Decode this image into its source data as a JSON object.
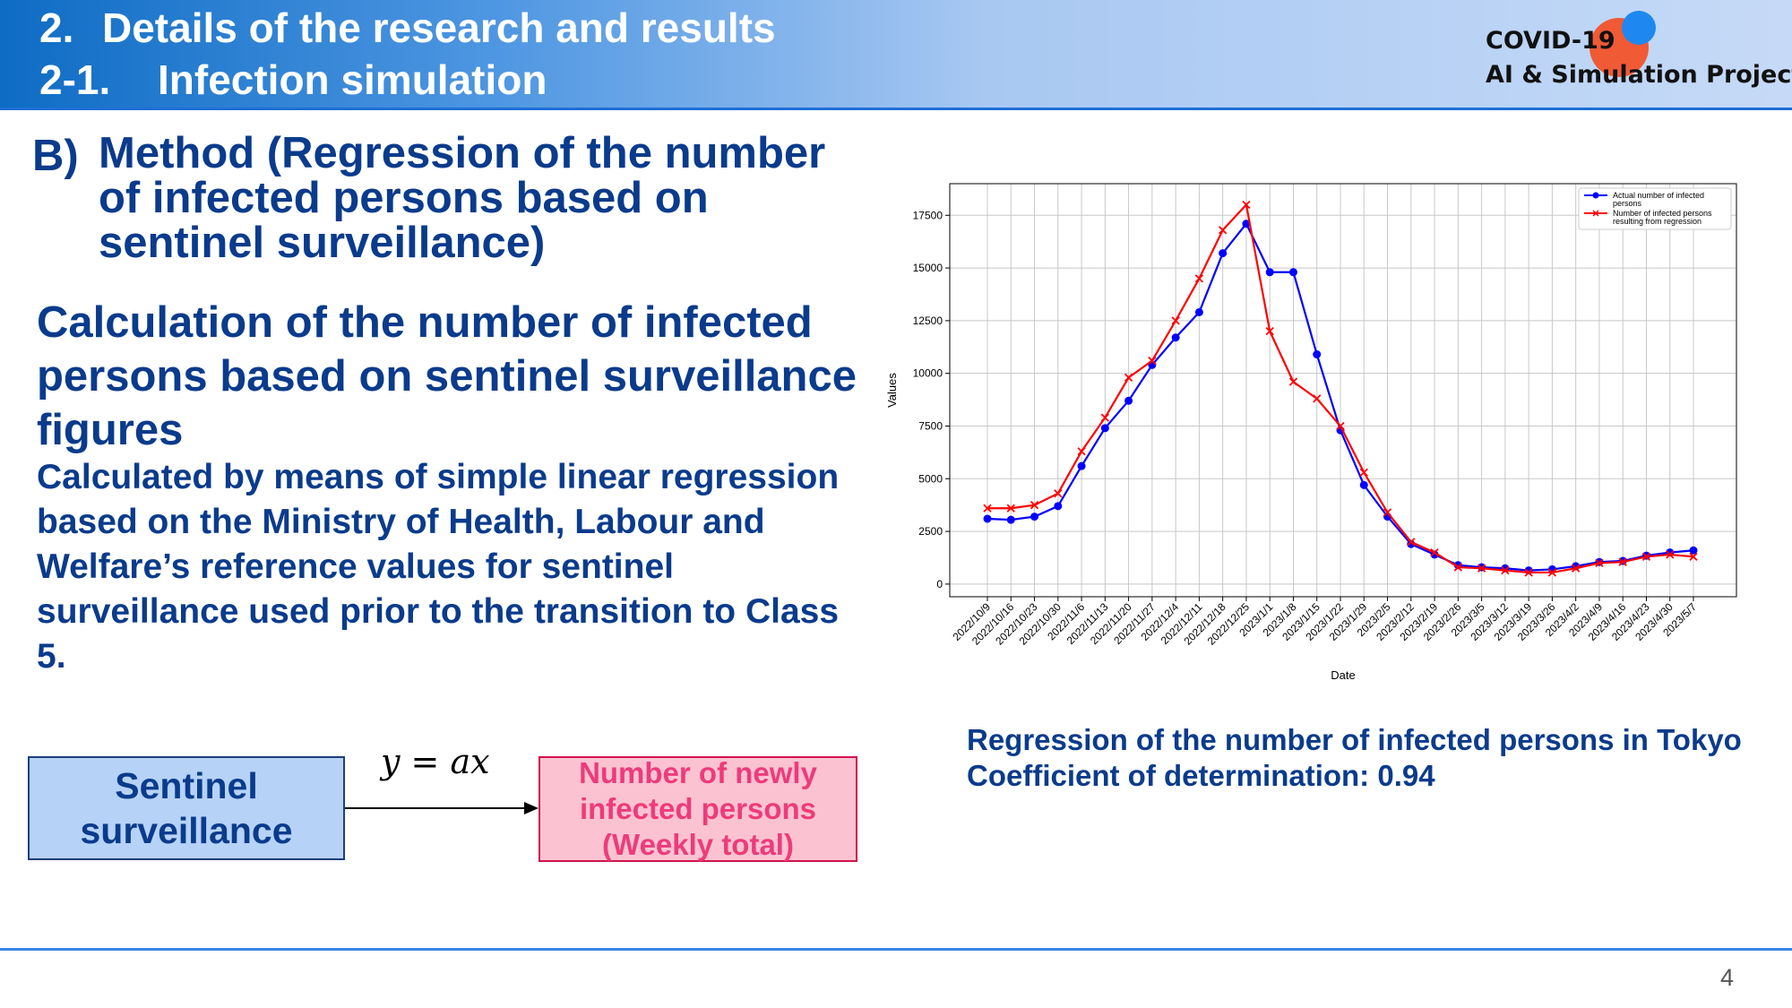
{
  "header": {
    "line1_num": "2.",
    "line1_text": "Details of the research and results",
    "line2_num": "2-1.",
    "line2_text": "Infection simulation",
    "logo_line1": "COVID-19",
    "logo_line2": "AI & Simulation Project",
    "logo_colors": {
      "orange": "#f05a35",
      "blue": "#1e88f0"
    }
  },
  "method": {
    "label": "B)",
    "text": "Method (Regression of the number of infected persons based on sentinel surveillance)"
  },
  "calc": {
    "heading": "Calculation of the number of infected persons based on sentinel surveillance figures",
    "body": "Calculated by means of simple linear regression based on the Ministry of Health, Labour and Welfare’s reference values for sentinel surveillance used prior to the transition to Class 5."
  },
  "diagram": {
    "left_box": "Sentinel surveillance",
    "formula": "y = ax",
    "right_box": "Number of newly infected persons (Weekly total)"
  },
  "caption": {
    "line1": "Regression of the number of infected persons in Tokyo",
    "line2": "Coefficient of determination: 0.94"
  },
  "page_number": "4",
  "chart_data": {
    "type": "line",
    "xlabel": "Date",
    "ylabel": "Values",
    "ylim": [
      -600,
      19000
    ],
    "yticks": [
      0,
      2500,
      5000,
      7500,
      10000,
      12500,
      15000,
      17500
    ],
    "grid": true,
    "legend_position": "top-right",
    "categories": [
      "2022/10/9",
      "2022/10/16",
      "2022/10/23",
      "2022/10/30",
      "2022/11/6",
      "2022/11/13",
      "2022/11/20",
      "2022/11/27",
      "2022/12/4",
      "2022/12/11",
      "2022/12/18",
      "2022/12/25",
      "2023/1/1",
      "2023/1/8",
      "2023/1/15",
      "2023/1/22",
      "2023/1/29",
      "2023/2/5",
      "2023/2/12",
      "2023/2/19",
      "2023/2/26",
      "2023/3/5",
      "2023/3/12",
      "2023/3/19",
      "2023/3/26",
      "2023/4/2",
      "2023/4/9",
      "2023/4/16",
      "2023/4/23",
      "2023/4/30",
      "2023/5/7"
    ],
    "series": [
      {
        "name": "Actual number of infected persons",
        "color": "#0000ff",
        "marker": "circle",
        "values": [
          3100,
          3050,
          3200,
          3700,
          5600,
          7400,
          8700,
          10400,
          11700,
          12900,
          15700,
          17100,
          14800,
          14800,
          10900,
          7300,
          4700,
          3200,
          1900,
          1400,
          900,
          800,
          750,
          650,
          700,
          850,
          1050,
          1100,
          1350,
          1500,
          1600
        ]
      },
      {
        "name": "Number of infected persons resulting from regression",
        "color": "#ff0000",
        "marker": "x",
        "values": [
          3600,
          3600,
          3750,
          4300,
          6300,
          7900,
          9800,
          10600,
          12500,
          14500,
          16800,
          18000,
          12000,
          9600,
          8800,
          7500,
          5300,
          3400,
          2000,
          1500,
          800,
          750,
          650,
          550,
          550,
          750,
          1000,
          1050,
          1300,
          1400,
          1300
        ]
      }
    ]
  }
}
